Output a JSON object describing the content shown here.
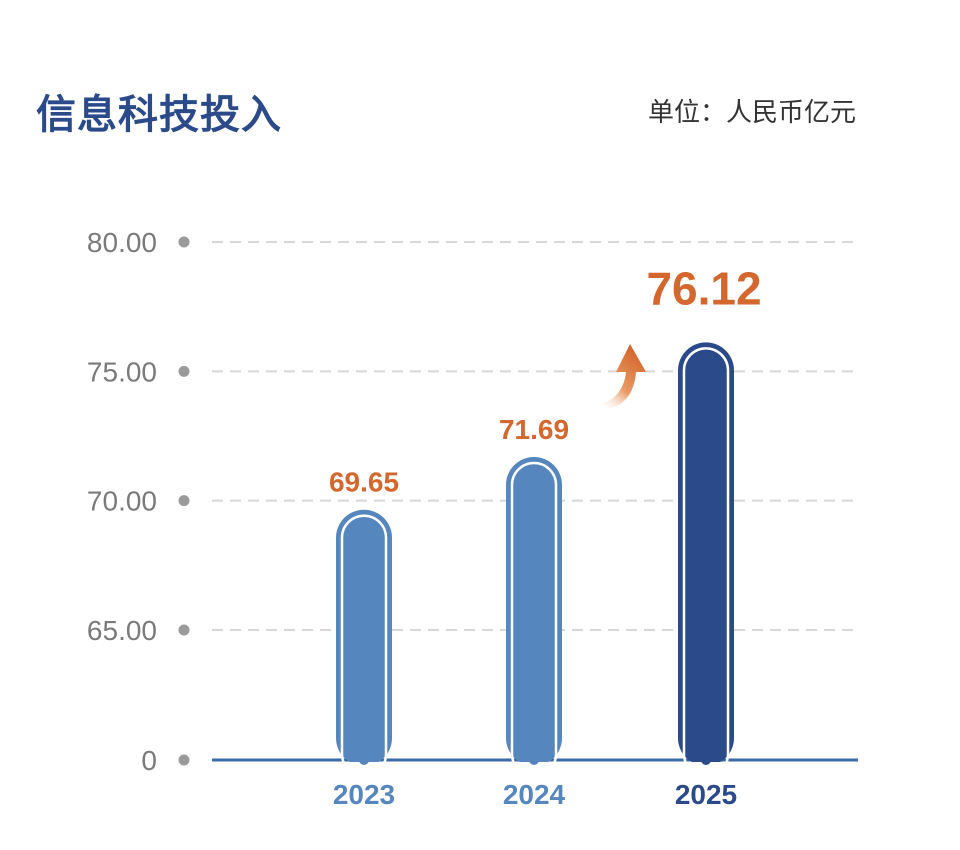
{
  "title": "信息科技投入",
  "unit_label": "单位：人民币亿元",
  "colors": {
    "title": "#2a4a8a",
    "bar": "#5586bd",
    "bar_highlight": "#2a4a8a",
    "data_label": "#d4672e",
    "axis": "#3a6aa8",
    "grid": "#d7d7d7",
    "tick_text": "#7a7a7a"
  },
  "chart_data": {
    "type": "bar",
    "title": "信息科技投入",
    "categories": [
      "2023",
      "2024",
      "2025"
    ],
    "values": [
      69.65,
      71.69,
      76.12
    ],
    "data_labels": [
      "69.65",
      "71.69",
      "76.12"
    ],
    "y_ticks": [
      "80.00",
      "75.00",
      "70.00",
      "65.00",
      "0"
    ],
    "y_axis_break": "axis breaks between 0 and 65.00",
    "ylim": [
      65,
      80
    ],
    "grid": true,
    "highlight_category": "2025",
    "annotation": "upward arrow pointing to 2025 bar"
  }
}
